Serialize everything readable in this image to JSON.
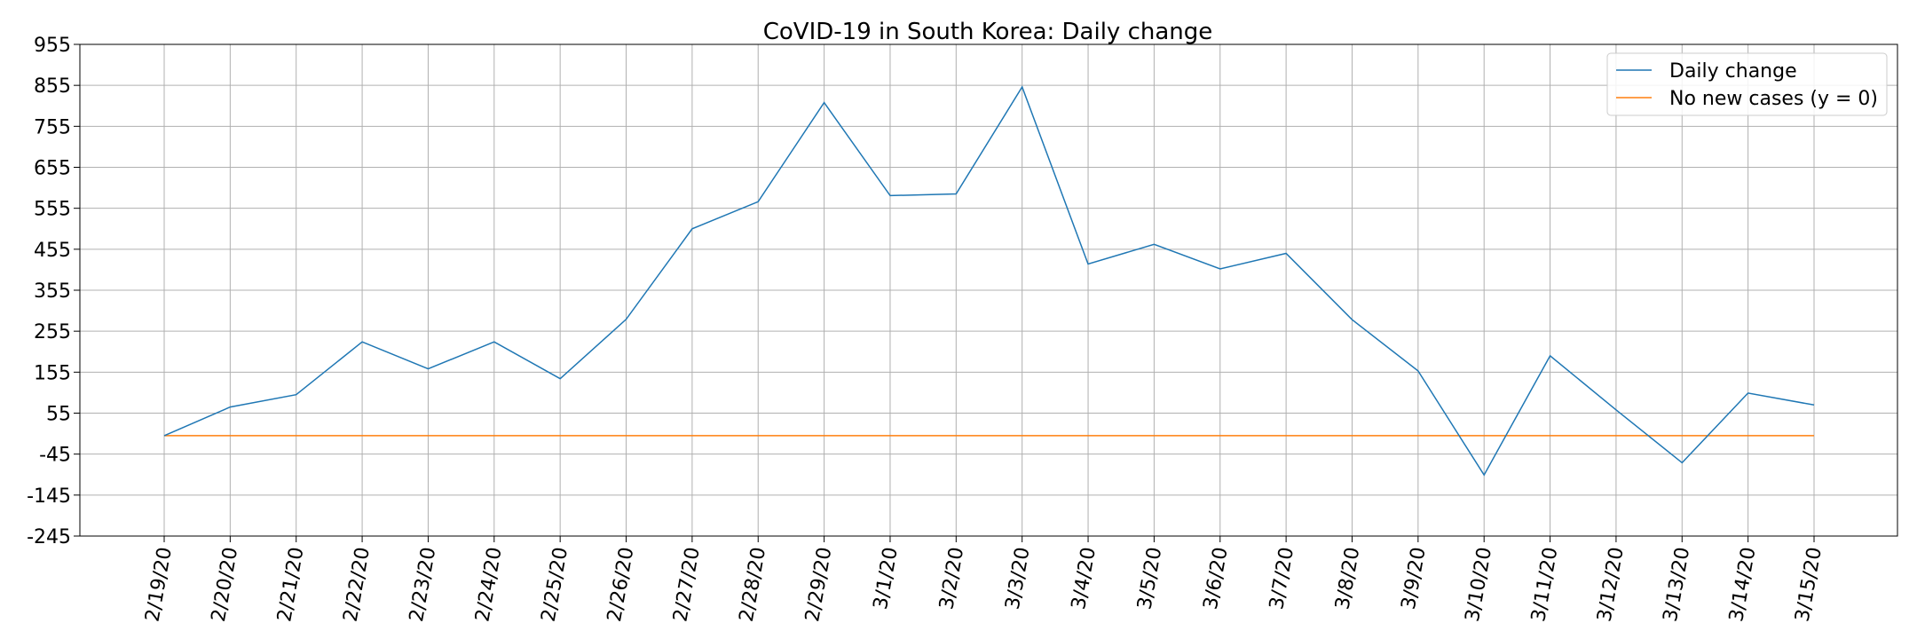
{
  "chart_data": {
    "type": "line",
    "title": "CoVID-19 in South Korea: Daily change",
    "xlabel": "",
    "ylabel": "",
    "categories": [
      "2/19/20",
      "2/20/20",
      "2/21/20",
      "2/22/20",
      "2/23/20",
      "2/24/20",
      "2/25/20",
      "2/26/20",
      "2/27/20",
      "2/28/20",
      "2/29/20",
      "3/1/20",
      "3/2/20",
      "3/3/20",
      "3/4/20",
      "3/5/20",
      "3/6/20",
      "3/7/20",
      "3/8/20",
      "3/9/20",
      "3/10/20",
      "3/11/20",
      "3/12/20",
      "3/13/20",
      "3/14/20",
      "3/15/20"
    ],
    "yticks": [
      955,
      855,
      755,
      655,
      555,
      455,
      355,
      255,
      155,
      55,
      -45,
      -145,
      -245
    ],
    "ylim": [
      -245,
      955
    ],
    "grid": true,
    "legend_position": "top-right",
    "series": [
      {
        "name": "Daily change",
        "color": "#1f77b4",
        "values": [
          0,
          70,
          100,
          229,
          163,
          229,
          139,
          284,
          505,
          571,
          813,
          586,
          590,
          851,
          419,
          467,
          407,
          445,
          283,
          158,
          -96,
          195,
          63,
          -66,
          104,
          75
        ]
      },
      {
        "name": "No new cases (y = 0)",
        "color": "#ff7f0e",
        "values": [
          0,
          0,
          0,
          0,
          0,
          0,
          0,
          0,
          0,
          0,
          0,
          0,
          0,
          0,
          0,
          0,
          0,
          0,
          0,
          0,
          0,
          0,
          0,
          0,
          0,
          0
        ]
      }
    ]
  }
}
